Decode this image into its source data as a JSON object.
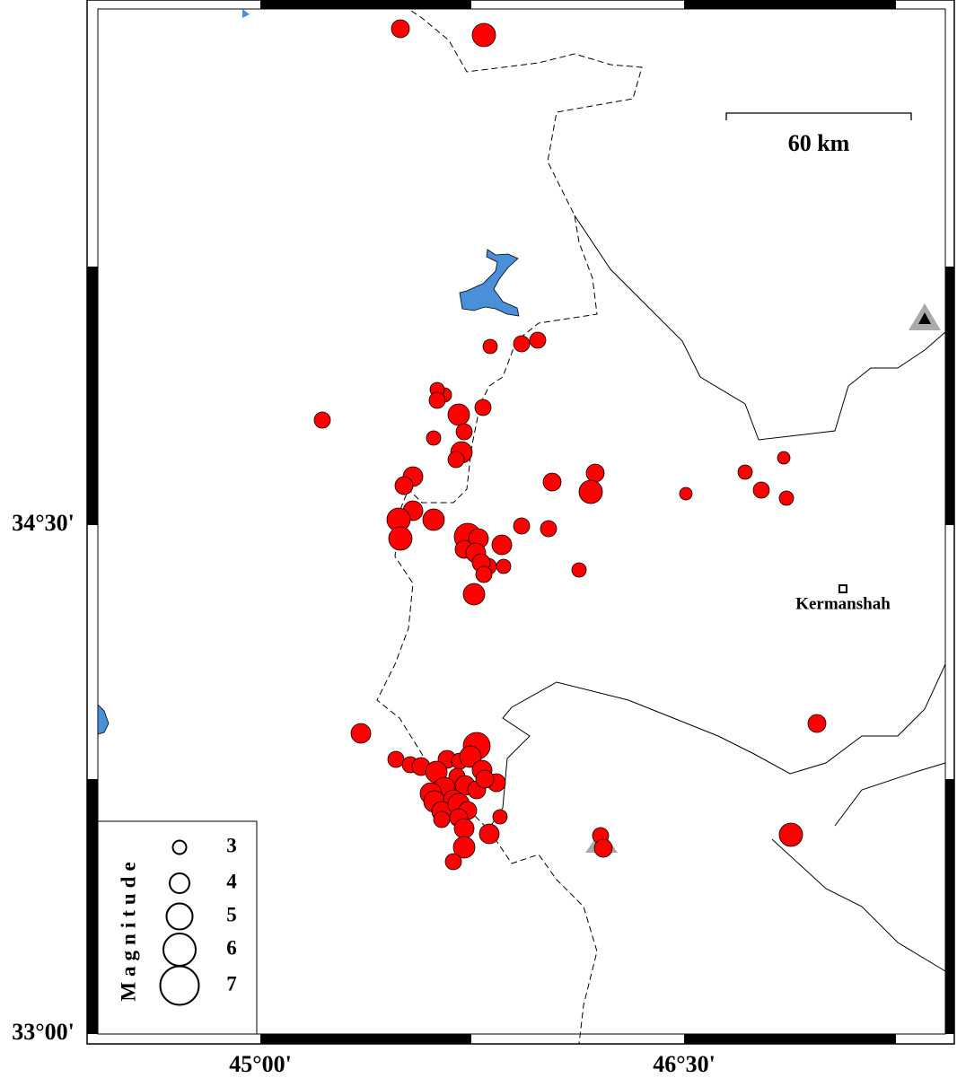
{
  "axes": {
    "lat_labels": [
      "34°30'",
      "33°00'"
    ],
    "lon_labels": [
      "45°00'",
      "46°30'"
    ]
  },
  "scale_bar": {
    "label": "60 km"
  },
  "places": [
    {
      "label": "Kermanshah"
    }
  ],
  "legend": {
    "title": "Magnitude",
    "magnitudes": [
      3,
      4,
      5,
      6,
      7
    ]
  }
}
